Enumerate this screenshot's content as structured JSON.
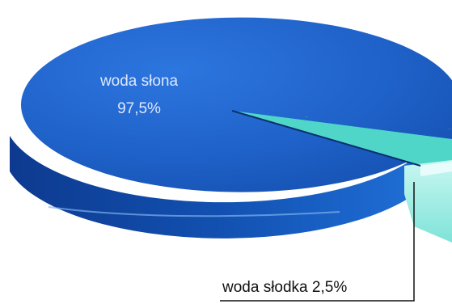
{
  "chart_data": {
    "type": "pie",
    "slices": [
      {
        "label": "woda słona",
        "value": 97.5,
        "value_label": "97,5%",
        "color": "#1f62c9"
      },
      {
        "label": "woda słodka",
        "value": 2.5,
        "value_label": "woda słodka 2,5%",
        "color": "#4fd6c9"
      }
    ],
    "colors": {
      "main_top": "#1f62c9",
      "main_side": "#0d3f9a",
      "fresh_top": "#4fd6c9",
      "fresh_side": "#a8f0e8"
    }
  }
}
